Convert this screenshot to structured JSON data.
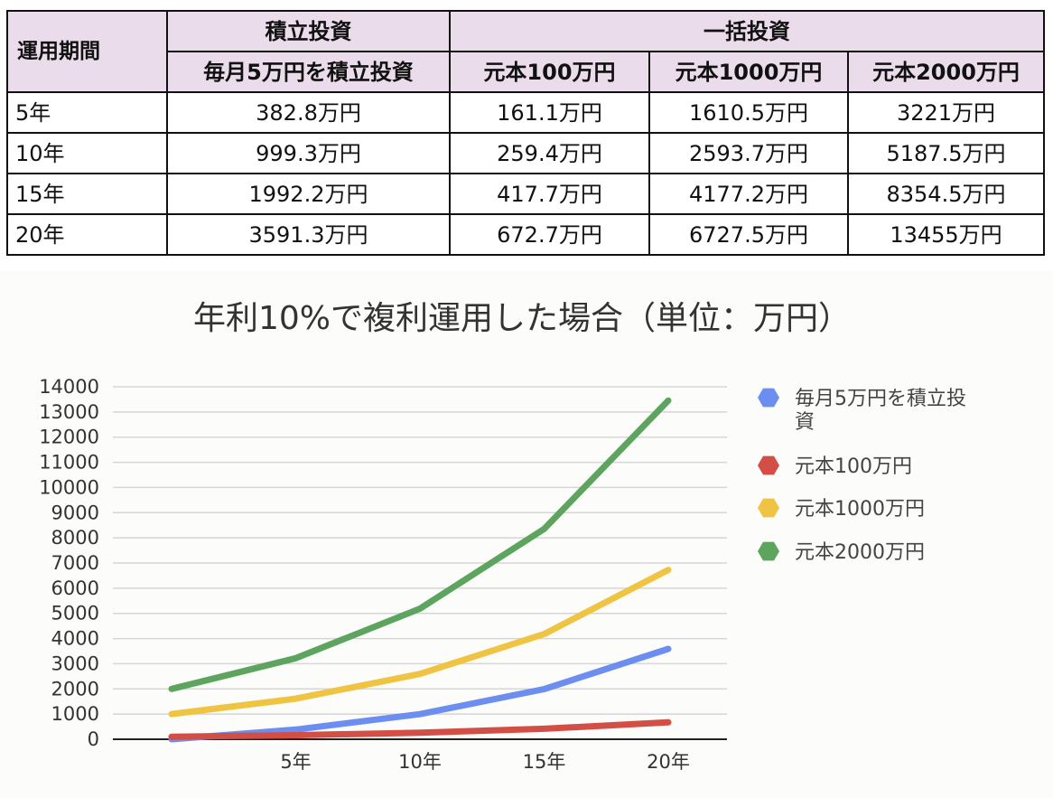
{
  "table": {
    "corner_label": "運用期間",
    "group_tsumitate": "積立投資",
    "group_ikkatsu": "一括投資",
    "sub_headers": [
      "毎月5万円を積立投資",
      "元本100万円",
      "元本1000万円",
      "元本2000万円"
    ],
    "rows": [
      {
        "period": "5年",
        "cells": [
          "382.8万円",
          "161.1万円",
          "1610.5万円",
          "3221万円"
        ]
      },
      {
        "period": "10年",
        "cells": [
          "999.3万円",
          "259.4万円",
          "2593.7万円",
          "5187.5万円"
        ]
      },
      {
        "period": "15年",
        "cells": [
          "1992.2万円",
          "417.7万円",
          "4177.2万円",
          "8354.5万円"
        ]
      },
      {
        "period": "20年",
        "cells": [
          "3591.3万円",
          "672.7万円",
          "6727.5万円",
          "13455万円"
        ]
      }
    ]
  },
  "chart_data": {
    "type": "line",
    "title": "年利10%で複利運用した場合（単位：万円）",
    "x": [
      0,
      5,
      10,
      15,
      20
    ],
    "x_tick_labels": [
      "",
      "5年",
      "10年",
      "15年",
      "20年"
    ],
    "ylim": [
      0,
      14000
    ],
    "yticks": [
      0,
      1000,
      2000,
      3000,
      4000,
      5000,
      6000,
      7000,
      8000,
      9000,
      10000,
      11000,
      12000,
      13000,
      14000
    ],
    "grid": true,
    "legend_position": "right",
    "series": [
      {
        "name": "毎月5万円を積立投資",
        "color": "#6b8ef0",
        "values": [
          0,
          382.8,
          999.3,
          1992.2,
          3591.3
        ]
      },
      {
        "name": "元本100万円",
        "color": "#d34f45",
        "values": [
          100,
          161.1,
          259.4,
          417.7,
          672.7
        ]
      },
      {
        "name": "元本1000万円",
        "color": "#efc443",
        "values": [
          1000,
          1610.5,
          2593.7,
          4177.2,
          6727.5
        ]
      },
      {
        "name": "元本2000万円",
        "color": "#5da45e",
        "values": [
          2000,
          3221,
          5187.5,
          8354.5,
          13455
        ]
      }
    ]
  }
}
